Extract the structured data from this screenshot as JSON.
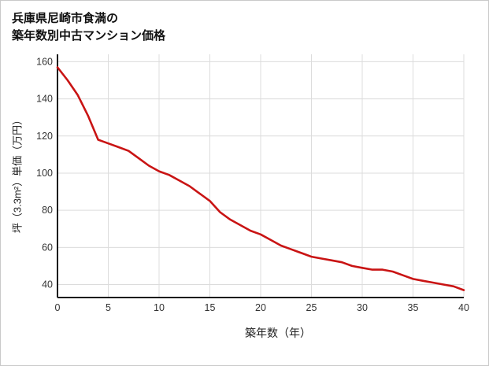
{
  "title": {
    "line1": "兵庫県尼崎市食満の",
    "line2": "築年数別中古マンション価格"
  },
  "chart_data": {
    "type": "line",
    "title": "兵庫県尼崎市食満の築年数別中古マンション価格",
    "xlabel": "築年数（年）",
    "ylabel": "坪（3.3m²）単価（万円）",
    "x": [
      0,
      1,
      2,
      3,
      4,
      5,
      6,
      7,
      8,
      9,
      10,
      11,
      12,
      13,
      14,
      15,
      16,
      17,
      18,
      19,
      20,
      21,
      22,
      23,
      24,
      25,
      26,
      27,
      28,
      29,
      30,
      31,
      32,
      33,
      34,
      35,
      36,
      37,
      38,
      39,
      40
    ],
    "y": [
      157,
      150,
      142,
      131,
      118,
      116,
      114,
      112,
      108,
      104,
      101,
      99,
      96,
      93,
      89,
      85,
      79,
      75,
      72,
      69,
      67,
      64,
      61,
      59,
      57,
      55,
      54,
      53,
      52,
      50,
      49,
      48,
      48,
      47,
      45,
      43,
      42,
      41,
      40,
      39,
      37
    ],
    "xlim": [
      0,
      40
    ],
    "ylim": [
      33,
      164
    ],
    "xticks": [
      0,
      5,
      10,
      15,
      20,
      25,
      30,
      35,
      40
    ],
    "yticks": [
      40,
      60,
      80,
      100,
      120,
      140,
      160
    ],
    "grid": true,
    "legend": "none"
  },
  "colors": {
    "line": "#c91414",
    "grid": "#dcdcdc",
    "axis": "#1a1a1a",
    "tick_text": "#333333"
  }
}
